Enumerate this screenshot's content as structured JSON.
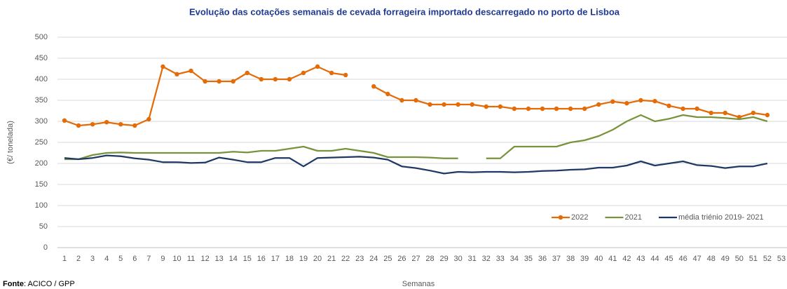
{
  "chart_data": {
    "type": "line",
    "title": "Evolução das cotações semanais de cevada forrageira importado descarregado no porto de Lisboa",
    "x_label": "Semanas",
    "y_label": "(€/ tonelada)",
    "source_label": "Fonte",
    "source_text": ": ACICO / GPP",
    "categories": [
      "1",
      "2",
      "3",
      "4",
      "5",
      "6",
      "7",
      "9",
      "10",
      "11",
      "12",
      "13",
      "14",
      "15",
      "16",
      "17",
      "18",
      "19",
      "20",
      "21",
      "22",
      "23",
      "24",
      "25",
      "26",
      "27",
      "28",
      "29",
      "30",
      "31",
      "32",
      "33",
      "34",
      "35",
      "36",
      "37",
      "38",
      "39",
      "40",
      "41",
      "42",
      "43",
      "44",
      "45",
      "46",
      "47",
      "48",
      "49",
      "50",
      "51",
      "52",
      "53"
    ],
    "series": [
      {
        "name": "2022",
        "color": "#e36c09",
        "marker": true,
        "values": [
          302,
          290,
          293,
          298,
          293,
          290,
          305,
          430,
          412,
          420,
          395,
          395,
          395,
          415,
          400,
          400,
          400,
          415,
          430,
          415,
          410,
          null,
          383,
          365,
          350,
          350,
          340,
          340,
          340,
          340,
          335,
          335,
          330,
          330,
          330,
          330,
          330,
          330,
          340,
          347,
          343,
          350,
          348,
          337,
          330,
          330,
          320,
          320,
          310,
          320,
          315,
          null
        ]
      },
      {
        "name": "2021",
        "color": "#77933c",
        "marker": false,
        "values": [
          210,
          210,
          220,
          225,
          226,
          225,
          225,
          225,
          225,
          225,
          225,
          225,
          228,
          226,
          230,
          230,
          235,
          240,
          230,
          230,
          235,
          230,
          225,
          215,
          215,
          215,
          214,
          212,
          212,
          null,
          212,
          212,
          240,
          240,
          240,
          240,
          250,
          255,
          265,
          280,
          300,
          315,
          300,
          306,
          315,
          310,
          310,
          308,
          305,
          310,
          300,
          null
        ]
      },
      {
        "name": "média triénio 2019- 2021",
        "color": "#1f3864",
        "marker": false,
        "values": [
          213,
          210,
          213,
          219,
          217,
          212,
          209,
          203,
          203,
          201,
          202,
          214,
          209,
          203,
          203,
          213,
          213,
          193,
          213,
          214,
          215,
          216,
          214,
          209,
          193,
          189,
          183,
          176,
          180,
          179,
          180,
          180,
          179,
          180,
          182,
          183,
          185,
          186,
          190,
          190,
          195,
          205,
          195,
          200,
          205,
          196,
          194,
          189,
          193,
          193,
          200,
          null
        ]
      }
    ],
    "ylim": [
      0,
      500
    ],
    "yticks": [
      0,
      50,
      100,
      150,
      200,
      250,
      300,
      350,
      400,
      450,
      500
    ],
    "grid": true,
    "legend": "bottom-right"
  }
}
